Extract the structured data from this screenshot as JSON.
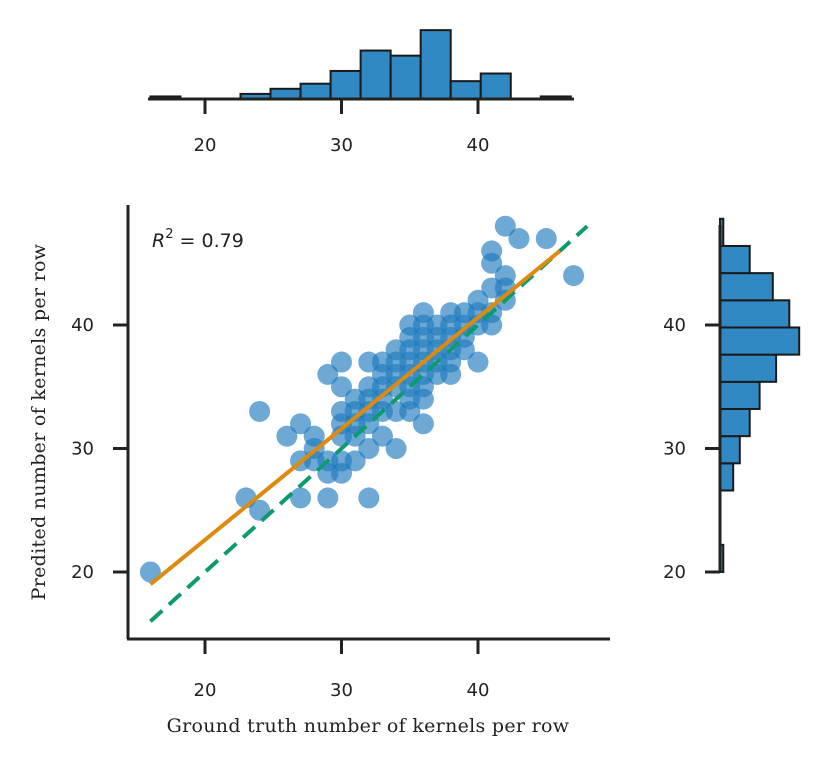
{
  "chart_data": {
    "type": "scatter",
    "title": "",
    "xlabel": "Ground truth number of kernels per row",
    "ylabel": "Predited number of kernels per row",
    "annotation": {
      "prefix": "R",
      "superscript": "2",
      "text": " = 0.79"
    },
    "xlim": [
      13.5,
      49
    ],
    "ylim": [
      14.5,
      50
    ],
    "xticks": [
      20,
      30,
      40
    ],
    "yticks": [
      20,
      30,
      40
    ],
    "colors": {
      "points": "#1f7bbd",
      "fit_line": "#dd8a0e",
      "identity_line": "#0e9a6f",
      "hist_bars": "#3189c4",
      "axes": "#222222"
    },
    "points": [
      [
        16,
        20
      ],
      [
        23,
        26
      ],
      [
        24,
        25
      ],
      [
        24,
        33
      ],
      [
        26,
        31
      ],
      [
        27,
        26
      ],
      [
        27,
        29
      ],
      [
        27,
        32
      ],
      [
        28,
        29
      ],
      [
        28,
        30
      ],
      [
        28,
        31
      ],
      [
        29,
        26
      ],
      [
        29,
        28
      ],
      [
        29,
        29
      ],
      [
        29,
        36
      ],
      [
        30,
        28
      ],
      [
        30,
        29
      ],
      [
        30,
        31
      ],
      [
        30,
        32
      ],
      [
        30,
        33
      ],
      [
        30,
        35
      ],
      [
        30,
        37
      ],
      [
        31,
        29
      ],
      [
        31,
        31
      ],
      [
        31,
        32
      ],
      [
        31,
        33
      ],
      [
        31,
        34
      ],
      [
        32,
        26
      ],
      [
        32,
        30
      ],
      [
        32,
        32
      ],
      [
        32,
        33
      ],
      [
        32,
        34
      ],
      [
        32,
        35
      ],
      [
        32,
        37
      ],
      [
        33,
        31
      ],
      [
        33,
        33
      ],
      [
        33,
        34
      ],
      [
        33,
        35
      ],
      [
        33,
        36
      ],
      [
        33,
        37
      ],
      [
        34,
        30
      ],
      [
        34,
        33
      ],
      [
        34,
        35
      ],
      [
        34,
        36
      ],
      [
        34,
        37
      ],
      [
        34,
        38
      ],
      [
        35,
        33
      ],
      [
        35,
        34
      ],
      [
        35,
        35
      ],
      [
        35,
        36
      ],
      [
        35,
        37
      ],
      [
        35,
        38
      ],
      [
        35,
        39
      ],
      [
        35,
        40
      ],
      [
        36,
        32
      ],
      [
        36,
        34
      ],
      [
        36,
        35
      ],
      [
        36,
        36
      ],
      [
        36,
        37
      ],
      [
        36,
        38
      ],
      [
        36,
        39
      ],
      [
        36,
        40
      ],
      [
        36,
        41
      ],
      [
        37,
        36
      ],
      [
        37,
        37
      ],
      [
        37,
        38
      ],
      [
        37,
        39
      ],
      [
        37,
        40
      ],
      [
        38,
        36
      ],
      [
        38,
        37
      ],
      [
        38,
        38
      ],
      [
        38,
        39
      ],
      [
        38,
        40
      ],
      [
        38,
        41
      ],
      [
        39,
        38
      ],
      [
        39,
        39
      ],
      [
        39,
        40
      ],
      [
        39,
        41
      ],
      [
        40,
        37
      ],
      [
        40,
        40
      ],
      [
        40,
        41
      ],
      [
        40,
        42
      ],
      [
        41,
        40
      ],
      [
        41,
        41
      ],
      [
        41,
        43
      ],
      [
        41,
        45
      ],
      [
        41,
        46
      ],
      [
        42,
        42
      ],
      [
        42,
        43
      ],
      [
        42,
        44
      ],
      [
        42,
        48
      ],
      [
        43,
        47
      ],
      [
        45,
        47
      ],
      [
        47,
        44
      ]
    ],
    "fit_line": {
      "slope": 0.9,
      "intercept": 4.6,
      "x_range": [
        16,
        46
      ]
    },
    "identity_line": {
      "x_range": [
        16,
        48
      ]
    },
    "hist_x": {
      "bin_edges": [
        16,
        18.2,
        20.4,
        22.6,
        24.8,
        27,
        29.2,
        31.4,
        33.6,
        35.8,
        38,
        40.2,
        42.4,
        44.6,
        46.8
      ],
      "counts": [
        1,
        0,
        0,
        2,
        4,
        6,
        11,
        19,
        17,
        27,
        7,
        10,
        0,
        1
      ]
    },
    "hist_y": {
      "bin_edges": [
        20,
        22.2,
        24.4,
        26.6,
        28.8,
        31,
        33.2,
        35.4,
        37.6,
        39.8,
        42,
        44.2,
        46.4,
        48.6
      ],
      "counts": [
        1,
        0,
        0,
        4,
        6,
        9,
        12,
        17,
        24,
        21,
        16,
        9,
        1,
        3
      ]
    }
  }
}
